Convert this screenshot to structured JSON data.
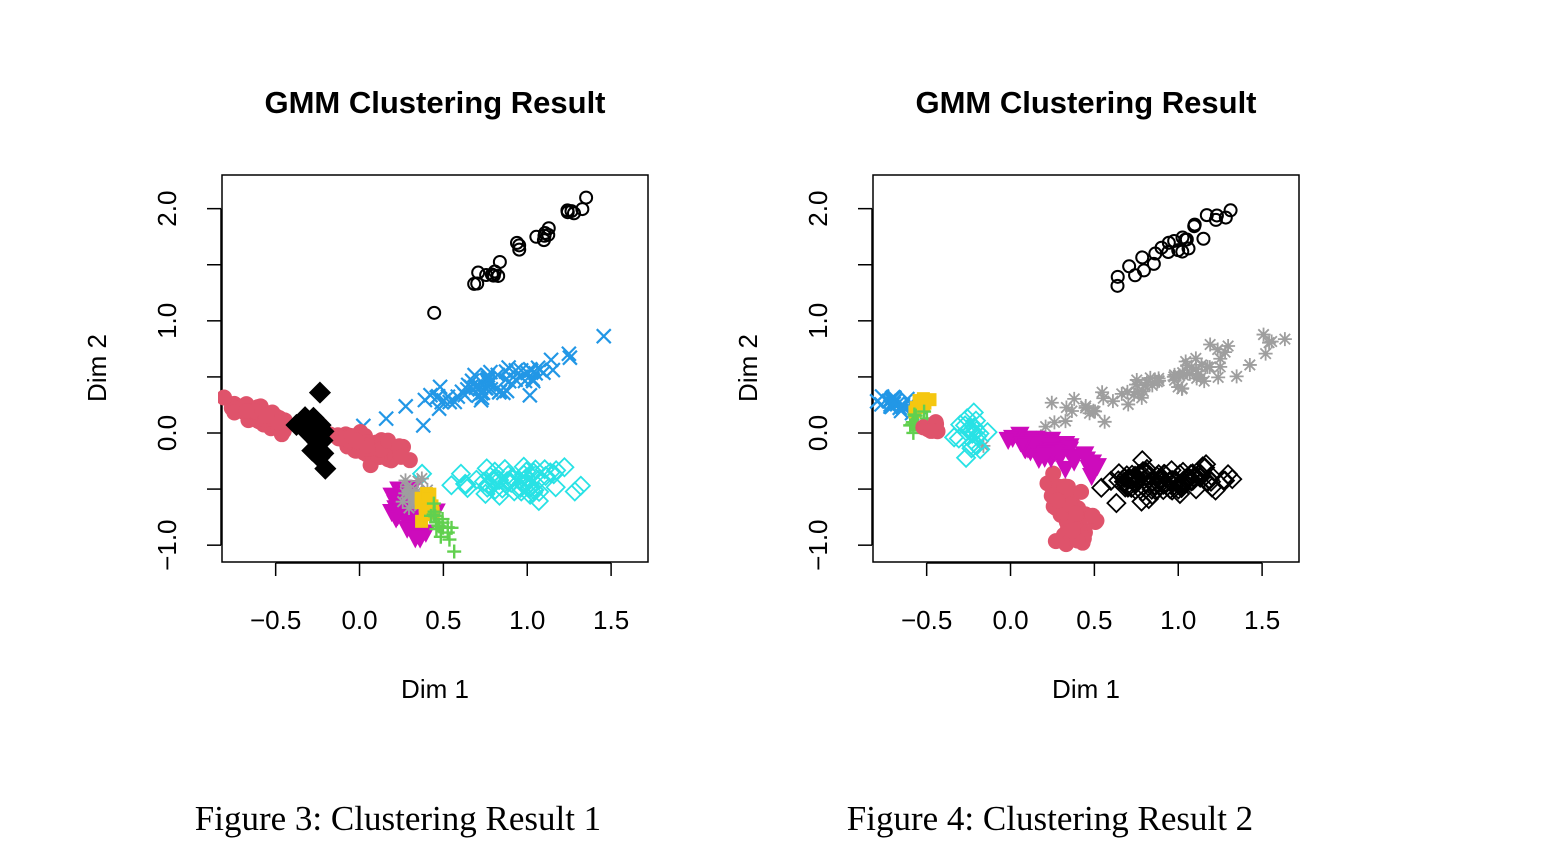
{
  "figures": [
    {
      "caption": "Figure 3: Clustering Result 1"
    },
    {
      "caption": "Figure 4: Clustering Result 2"
    }
  ],
  "chart_data": [
    {
      "type": "scatter",
      "title": "GMM Clustering Result",
      "xlabel": "Dim 1",
      "ylabel": "Dim 2",
      "xlim": [
        -0.82,
        1.72
      ],
      "ylim": [
        -1.15,
        2.3
      ],
      "x_ticks": [
        -0.5,
        0.0,
        0.5,
        1.0,
        1.5
      ],
      "x_tick_labels": [
        "−0.5",
        "0.0",
        "0.5",
        "1.0",
        "1.5"
      ],
      "y_ticks": [
        -1.0,
        -0.5,
        0.0,
        0.5,
        1.0,
        1.5,
        2.0
      ],
      "y_tick_labels": [
        "−1.0",
        "",
        "0.0",
        "",
        "1.0",
        "",
        "2.0"
      ],
      "grid": false,
      "series": [
        {
          "marker": "circle",
          "color": "#000000",
          "clusters": [
            {
              "cx": 1.0,
              "cy": 1.68,
              "sx": 0.22,
              "sy": 0.06,
              "slope": 1.02,
              "n": 26,
              "seed": 11
            }
          ]
        },
        {
          "marker": "x",
          "color": "#2297E6",
          "clusters": [
            {
              "cx": 0.82,
              "cy": 0.45,
              "sx": 0.3,
              "sy": 0.07,
              "slope": 0.52,
              "n": 70,
              "seed": 12
            }
          ]
        },
        {
          "marker": "dot",
          "color": "#DF536B",
          "clusters": [
            {
              "cx": -0.6,
              "cy": 0.16,
              "sx": 0.09,
              "sy": 0.04,
              "slope": -0.55,
              "n": 45,
              "seed": 13
            },
            {
              "cx": 0.08,
              "cy": -0.13,
              "sx": 0.13,
              "sy": 0.05,
              "slope": -0.4,
              "n": 70,
              "seed": 14
            }
          ]
        },
        {
          "marker": "diamond-filled",
          "color": "#000000",
          "clusters": [
            {
              "cx": -0.25,
              "cy": 0.0,
              "sx": 0.04,
              "sy": 0.14,
              "slope": 0.0,
              "n": 22,
              "seed": 15
            }
          ]
        },
        {
          "marker": "diamond",
          "color": "#28E2E5",
          "clusters": [
            {
              "cx": 0.93,
              "cy": -0.43,
              "sx": 0.18,
              "sy": 0.07,
              "slope": 0.0,
              "n": 60,
              "seed": 16
            }
          ]
        },
        {
          "marker": "triangle-down",
          "color": "#CD0BBC",
          "clusters": [
            {
              "cx": 0.3,
              "cy": -0.73,
              "sx": 0.06,
              "sy": 0.1,
              "slope": -1.1,
              "n": 35,
              "seed": 17
            }
          ]
        },
        {
          "marker": "star",
          "color": "#9E9E9E",
          "clusters": [
            {
              "cx": 0.3,
              "cy": -0.56,
              "sx": 0.04,
              "sy": 0.09,
              "slope": 0.0,
              "n": 16,
              "seed": 18
            }
          ]
        },
        {
          "marker": "square",
          "color": "#F5C710",
          "clusters": [
            {
              "cx": 0.39,
              "cy": -0.62,
              "sx": 0.025,
              "sy": 0.07,
              "slope": 0.0,
              "n": 12,
              "seed": 19
            }
          ]
        },
        {
          "marker": "plus",
          "color": "#61D04F",
          "clusters": [
            {
              "cx": 0.48,
              "cy": -0.8,
              "sx": 0.04,
              "sy": 0.08,
              "slope": -1.3,
              "n": 18,
              "seed": 20
            }
          ]
        }
      ]
    },
    {
      "type": "scatter",
      "title": "GMM Clustering Result",
      "xlabel": "Dim 1",
      "ylabel": "Dim 2",
      "xlim": [
        -0.82,
        1.72
      ],
      "ylim": [
        -1.15,
        2.3
      ],
      "x_ticks": [
        -0.5,
        0.0,
        0.5,
        1.0,
        1.5
      ],
      "x_tick_labels": [
        "−0.5",
        "0.0",
        "0.5",
        "1.0",
        "1.5"
      ],
      "y_ticks": [
        -1.0,
        -0.5,
        0.0,
        0.5,
        1.0,
        1.5,
        2.0
      ],
      "y_tick_labels": [
        "−1.0",
        "",
        "0.0",
        "",
        "1.0",
        "",
        "2.0"
      ],
      "grid": false,
      "series": [
        {
          "marker": "circle",
          "color": "#000000",
          "clusters": [
            {
              "cx": 1.0,
              "cy": 1.68,
              "sx": 0.22,
              "sy": 0.06,
              "slope": 1.02,
              "n": 26,
              "seed": 21
            }
          ]
        },
        {
          "marker": "star",
          "color": "#9E9E9E",
          "clusters": [
            {
              "cx": 0.82,
              "cy": 0.42,
              "sx": 0.33,
              "sy": 0.07,
              "slope": 0.52,
              "n": 70,
              "seed": 22
            }
          ]
        },
        {
          "marker": "x",
          "color": "#2297E6",
          "clusters": [
            {
              "cx": -0.66,
              "cy": 0.25,
              "sx": 0.05,
              "sy": 0.03,
              "slope": -0.3,
              "n": 25,
              "seed": 23
            }
          ]
        },
        {
          "marker": "square",
          "color": "#F5C710",
          "clusters": [
            {
              "cx": -0.53,
              "cy": 0.25,
              "sx": 0.025,
              "sy": 0.04,
              "slope": 0.0,
              "n": 8,
              "seed": 24
            }
          ]
        },
        {
          "marker": "plus",
          "color": "#61D04F",
          "clusters": [
            {
              "cx": -0.55,
              "cy": 0.08,
              "sx": 0.03,
              "sy": 0.04,
              "slope": 0.0,
              "n": 12,
              "seed": 25
            }
          ]
        },
        {
          "marker": "dot",
          "color": "#DF536B",
          "clusters": [
            {
              "cx": -0.46,
              "cy": 0.06,
              "sx": 0.03,
              "sy": 0.04,
              "slope": 0.0,
              "n": 10,
              "seed": 26
            },
            {
              "cx": 0.35,
              "cy": -0.7,
              "sx": 0.06,
              "sy": 0.14,
              "slope": -0.9,
              "n": 60,
              "seed": 27
            }
          ]
        },
        {
          "marker": "diamond",
          "color": "#28E2E5",
          "clusters": [
            {
              "cx": -0.22,
              "cy": 0.0,
              "sx": 0.05,
              "sy": 0.11,
              "slope": 0.0,
              "n": 22,
              "seed": 28
            }
          ]
        },
        {
          "marker": "triangle-down",
          "color": "#CD0BBC",
          "clusters": [
            {
              "cx": 0.2,
              "cy": -0.13,
              "sx": 0.12,
              "sy": 0.05,
              "slope": -0.4,
              "n": 70,
              "seed": 29
            }
          ]
        },
        {
          "marker": "diamond",
          "color": "#000000",
          "clusters": [
            {
              "cx": 0.92,
              "cy": -0.43,
              "sx": 0.16,
              "sy": 0.06,
              "slope": 0.0,
              "n": 110,
              "seed": 30
            }
          ]
        }
      ]
    }
  ]
}
